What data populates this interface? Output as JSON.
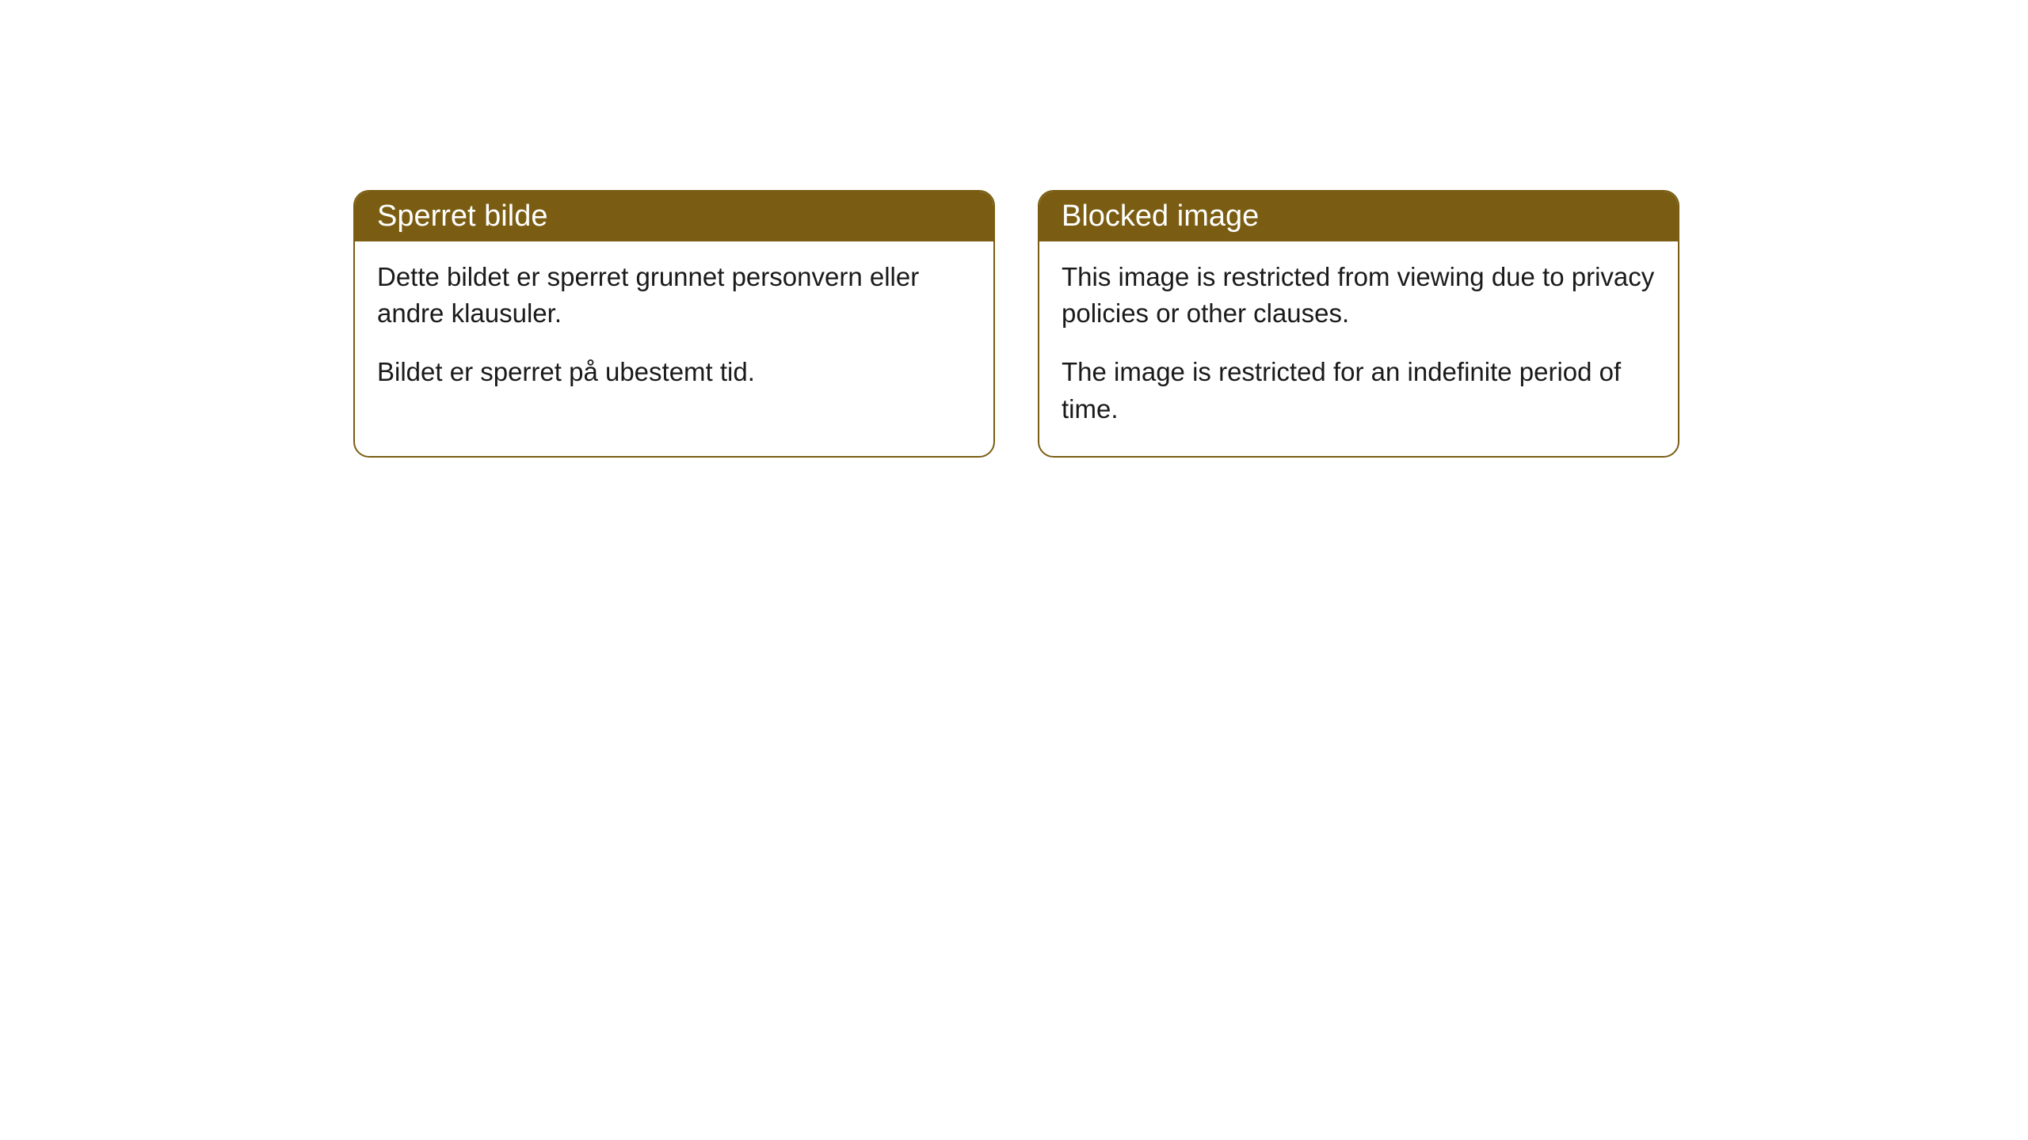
{
  "cards": [
    {
      "title": "Sperret bilde",
      "paragraph1": "Dette bildet er sperret grunnet personvern eller andre klausuler.",
      "paragraph2": "Bildet er sperret på ubestemt tid."
    },
    {
      "title": "Blocked image",
      "paragraph1": "This image is restricted from viewing due to privacy policies or other clauses.",
      "paragraph2": "The image is restricted for an indefinite period of time."
    }
  ],
  "styling": {
    "header_background_color": "#7a5d12",
    "header_text_color": "#ffffff",
    "border_color": "#7a5d12",
    "body_background_color": "#ffffff",
    "body_text_color": "#1a1a1a",
    "border_radius": 20,
    "header_fontsize": 38,
    "body_fontsize": 33
  }
}
